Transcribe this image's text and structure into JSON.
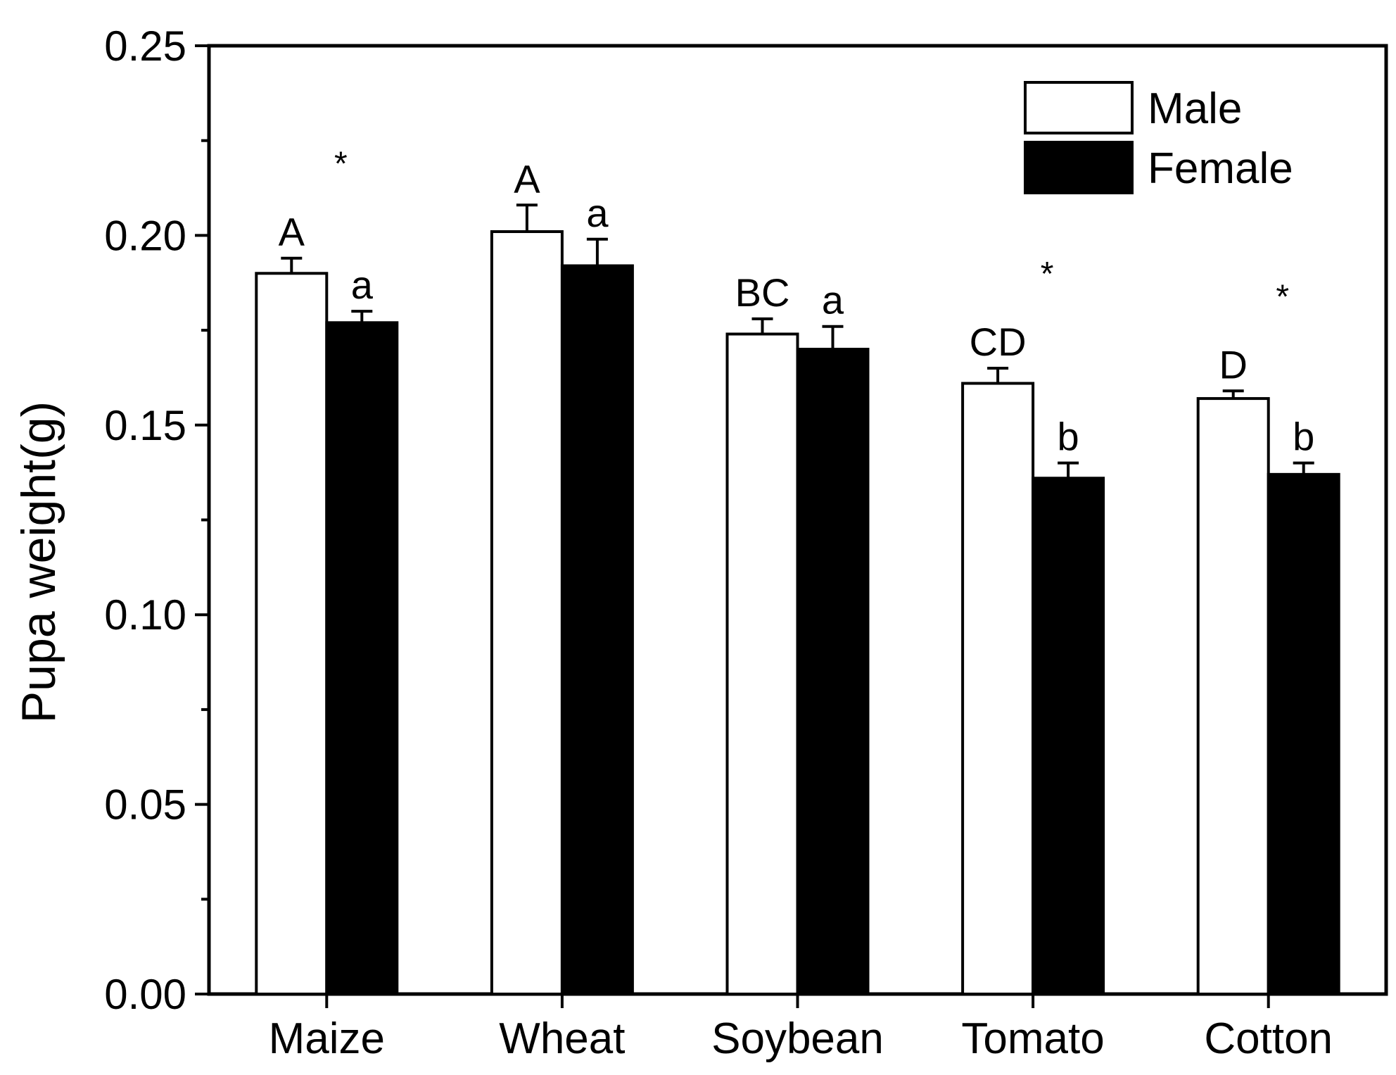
{
  "chart_data": {
    "type": "bar",
    "title": "",
    "xlabel": "",
    "ylabel": "Pupa weight(g)",
    "ylim": [
      0,
      0.25
    ],
    "yticks": [
      "0.00",
      "0.05",
      "0.10",
      "0.15",
      "0.20",
      "0.25"
    ],
    "grid": false,
    "legend_position": "top-right",
    "categories": [
      "Maize",
      "Wheat",
      "Soybean",
      "Tomato",
      "Cotton"
    ],
    "series": [
      {
        "name": "Male",
        "color": "#ffffff",
        "values": [
          0.19,
          0.201,
          0.174,
          0.161,
          0.157
        ],
        "errors": [
          0.004,
          0.007,
          0.004,
          0.004,
          0.002
        ],
        "letters": [
          "A",
          "A",
          "BC",
          "CD",
          "D"
        ]
      },
      {
        "name": "Female",
        "color": "#000000",
        "values": [
          0.177,
          0.192,
          0.17,
          0.136,
          0.137
        ],
        "errors": [
          0.003,
          0.007,
          0.006,
          0.004,
          0.003
        ],
        "letters": [
          "a",
          "a",
          "a",
          "b",
          "b"
        ]
      }
    ],
    "significance": [
      "*",
      "",
      "",
      "*",
      "*"
    ]
  }
}
